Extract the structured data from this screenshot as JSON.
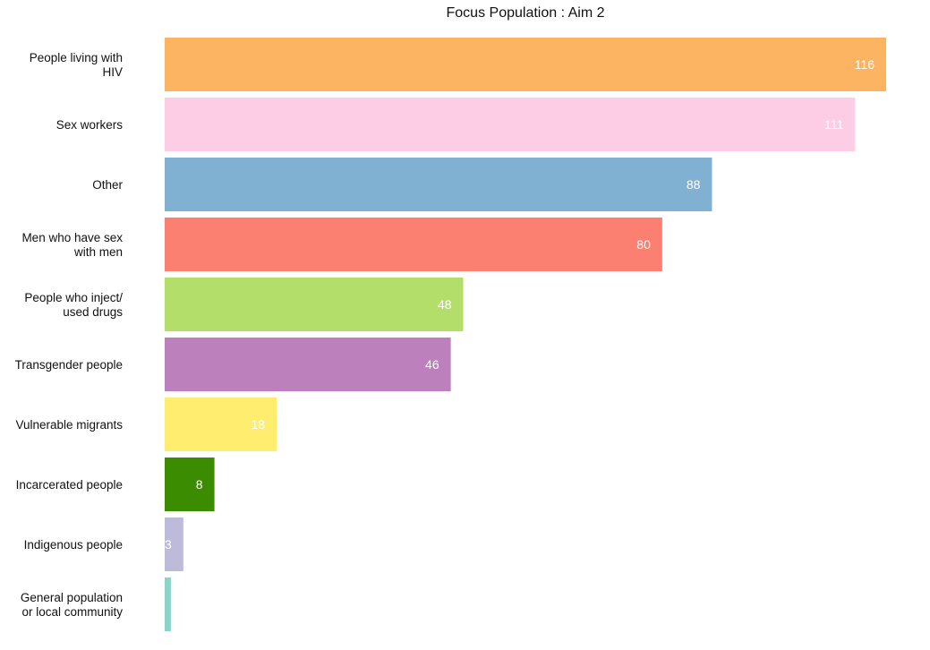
{
  "chart_data": {
    "type": "bar",
    "orientation": "horizontal",
    "title": "Focus Population : Aim 2",
    "xlabel": "",
    "ylabel": "",
    "grid": false,
    "legend": "none",
    "xlim": [
      0,
      116
    ],
    "categories": [
      [
        "People living with",
        "HIV"
      ],
      [
        "Sex workers"
      ],
      [
        "Other"
      ],
      [
        "Men who have sex",
        "with men"
      ],
      [
        "People who inject/",
        "used drugs"
      ],
      [
        "Transgender people"
      ],
      [
        "Vulnerable migrants"
      ],
      [
        "Incarcerated people"
      ],
      [
        "Indigenous people"
      ],
      [
        "General population",
        "or local community"
      ]
    ],
    "values": [
      116,
      111,
      88,
      80,
      48,
      46,
      18,
      8,
      3,
      1
    ],
    "data_labels": [
      "116",
      "111",
      "88",
      "80",
      "48",
      "46",
      "18",
      "8",
      "3",
      ""
    ],
    "colors": [
      "#FDB462",
      "#FCCDE5",
      "#80B1D3",
      "#FB8072",
      "#B3DE69",
      "#BC80BD",
      "#FFED6F",
      "#3B8C00",
      "#BEBADA",
      "#8DD3C7"
    ]
  }
}
